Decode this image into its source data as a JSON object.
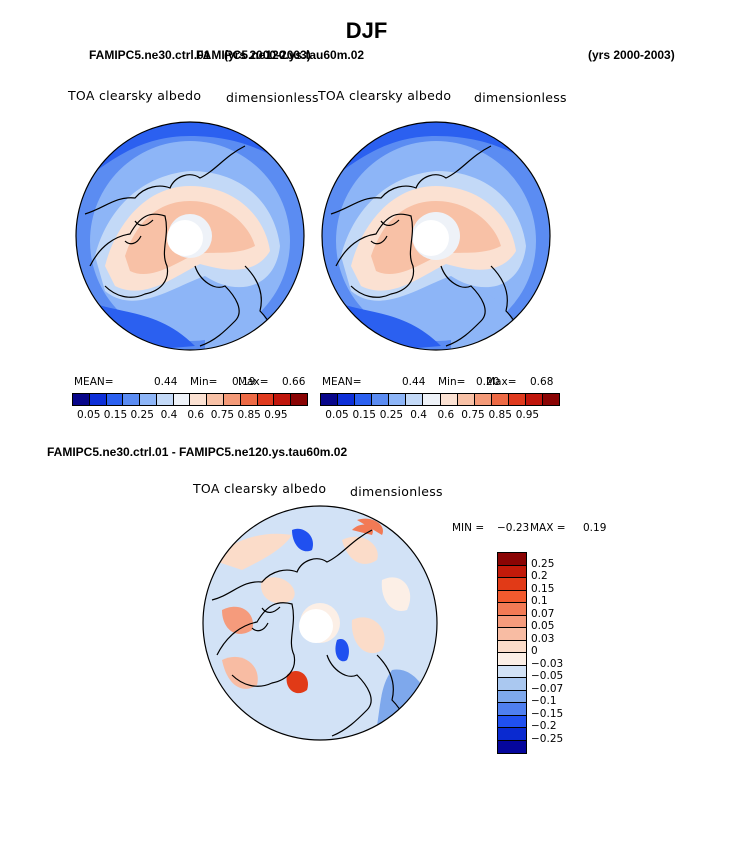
{
  "title": "DJF",
  "panel1": {
    "case": "FAMIPC5.ne30.ctrl.01",
    "years": "(yrs 2000-2003)",
    "variable": "TOA clearsky albedo",
    "units": "dimensionless",
    "mean_label": "MEAN=",
    "mean": "0.44",
    "min_label": "Min=",
    "min": "0.19",
    "max_label": "Max=",
    "max": "0.66"
  },
  "panel2": {
    "case": "FAMIPC5.ne120.ys.tau60m.02",
    "years": "(yrs 2000-2003)",
    "variable": "TOA clearsky albedo",
    "units": "dimensionless",
    "mean_label": "MEAN=",
    "mean": "0.44",
    "min_label": "Min=",
    "min": "0.20",
    "max_label": "Max=",
    "max": "0.68"
  },
  "diff": {
    "title": "FAMIPC5.ne30.ctrl.01 - FAMIPC5.ne120.ys.tau60m.02",
    "variable": "TOA clearsky albedo",
    "units": "dimensionless",
    "min_label": "MIN =",
    "min": "−0.23",
    "max_label": "MAX =",
    "max": "0.19"
  },
  "chart_data": [
    {
      "type": "heatmap",
      "projection": "north polar stereographic",
      "title": "TOA clearsky albedo",
      "units": "dimensionless",
      "mean": 0.44,
      "min": 0.19,
      "max": 0.66,
      "colorbar_levels": [
        "0.05",
        "0.15",
        "0.25",
        "0.4",
        "0.6",
        "0.75",
        "0.85",
        "0.95"
      ],
      "colorbar_colors": [
        "#08068a",
        "#0d2fd8",
        "#2b60f0",
        "#5b8cf2",
        "#8db5f7",
        "#c3d9f7",
        "#eef2f8",
        "#fbe1d2",
        "#f8c1a6",
        "#f49a78",
        "#ed6a45",
        "#e03a1e",
        "#c0160c",
        "#8a0404"
      ]
    },
    {
      "type": "heatmap",
      "projection": "north polar stereographic",
      "title": "TOA clearsky albedo",
      "units": "dimensionless",
      "mean": 0.44,
      "min": 0.2,
      "max": 0.68,
      "colorbar_levels": [
        "0.05",
        "0.15",
        "0.25",
        "0.4",
        "0.6",
        "0.75",
        "0.85",
        "0.95"
      ],
      "colorbar_colors": [
        "#08068a",
        "#0d2fd8",
        "#2b60f0",
        "#5b8cf2",
        "#8db5f7",
        "#c3d9f7",
        "#eef2f8",
        "#fbe1d2",
        "#f8c1a6",
        "#f49a78",
        "#ed6a45",
        "#e03a1e",
        "#c0160c",
        "#8a0404"
      ]
    },
    {
      "type": "heatmap",
      "projection": "north polar stereographic",
      "title": "TOA clearsky albedo",
      "units": "dimensionless",
      "min": -0.23,
      "max": 0.19,
      "colorbar_levels": [
        "0.25",
        "0.2",
        "0.15",
        "0.1",
        "0.07",
        "0.05",
        "0.03",
        "0",
        "−0.03",
        "−0.05",
        "−0.07",
        "−0.1",
        "−0.15",
        "−0.2",
        "−0.25"
      ],
      "colorbar_colors": [
        "#8a0404",
        "#c21a0a",
        "#e13a17",
        "#f25a2e",
        "#f27a55",
        "#f59b7c",
        "#f8bca3",
        "#fbdcc9",
        "#fcefe6",
        "#d2e2f6",
        "#aac8f0",
        "#7ea8ec",
        "#4f7ff0",
        "#2050f0",
        "#0a2ad0",
        "#05069c"
      ]
    }
  ]
}
